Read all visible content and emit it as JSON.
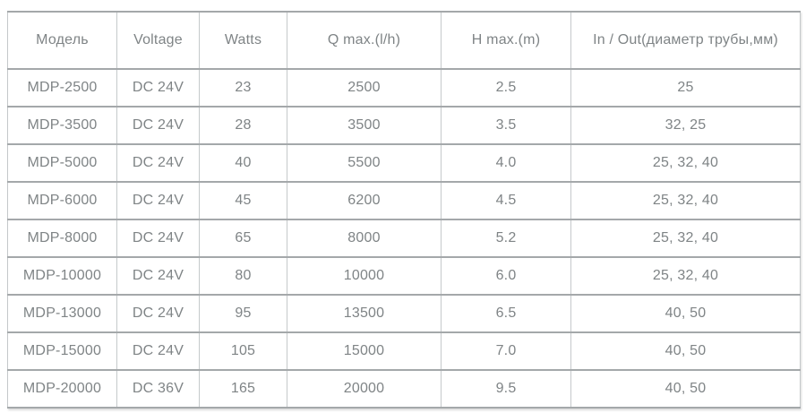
{
  "chart_data": {
    "type": "table",
    "columns": [
      "Модель",
      "Voltage",
      "Watts",
      "Q max.(l/h)",
      "H max.(m)",
      "In / Out(диаметр трубы,мм)"
    ],
    "rows": [
      {
        "cells": [
          "MDP-2500",
          "DC 24V",
          "23",
          "2500",
          "2.5",
          "25"
        ]
      },
      {
        "cells": [
          "MDP-3500",
          "DC 24V",
          "28",
          "3500",
          "3.5",
          "32, 25"
        ]
      },
      {
        "cells": [
          "MDP-5000",
          "DC 24V",
          "40",
          "5500",
          "4.0",
          "25, 32, 40"
        ]
      },
      {
        "cells": [
          "MDP-6000",
          "DC 24V",
          "45",
          "6200",
          "4.5",
          "25, 32, 40"
        ]
      },
      {
        "cells": [
          "MDP-8000",
          "DC 24V",
          "65",
          "8000",
          "5.2",
          "25, 32, 40"
        ]
      },
      {
        "cells": [
          "MDP-10000",
          "DC 24V",
          "80",
          "10000",
          "6.0",
          "25, 32, 40"
        ]
      },
      {
        "cells": [
          "MDP-13000",
          "DC 24V",
          "95",
          "13500",
          "6.5",
          "40, 50"
        ]
      },
      {
        "cells": [
          "MDP-15000",
          "DC 24V",
          "105",
          "15000",
          "7.0",
          "40, 50"
        ]
      },
      {
        "cells": [
          "MDP-20000",
          "DC 36V",
          "165",
          "20000",
          "9.5",
          "40, 50"
        ]
      }
    ]
  },
  "colors": {
    "text": "#7f8486",
    "horizontal_border": "#a4a8aa",
    "vertical_border": "#c5c9cb",
    "background": "#ffffff"
  }
}
